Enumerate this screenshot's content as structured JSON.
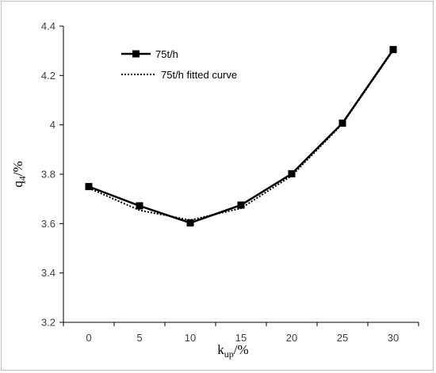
{
  "chart_data": {
    "type": "line",
    "x": [
      0,
      5,
      10,
      15,
      20,
      25,
      30
    ],
    "series": [
      {
        "name": "75t/h",
        "values": [
          3.75,
          3.672,
          3.603,
          3.675,
          3.802,
          4.007,
          4.305
        ],
        "style": "solid-square-markers",
        "color": "#000000"
      },
      {
        "name": "75t/h fitted curve",
        "values": [
          3.744,
          3.654,
          3.614,
          3.662,
          3.794,
          4.004,
          4.302
        ],
        "style": "dotted",
        "color": "#000000"
      }
    ],
    "xticks": [
      "0",
      "5",
      "10",
      "15",
      "20",
      "25",
      "30"
    ],
    "yticks": [
      "3.2",
      "3.4",
      "3.6",
      "3.8",
      "4",
      "4.2",
      "4.4"
    ],
    "ylim": [
      3.2,
      4.4
    ],
    "xlabel": {
      "main": "k",
      "sub": "up",
      "unit": "/%"
    },
    "ylabel": {
      "main": "q",
      "sub": "4",
      "unit": "/%"
    },
    "grid": false,
    "legend_position": "top-left"
  }
}
